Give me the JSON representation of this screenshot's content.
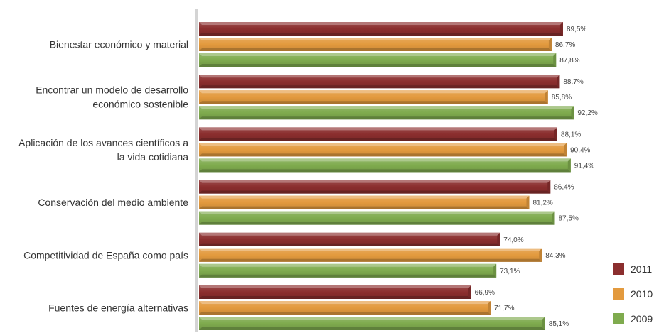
{
  "chart_data": {
    "type": "bar",
    "orientation": "horizontal",
    "categories": [
      [
        "Bienestar económico y material"
      ],
      [
        "Encontrar un modelo de desarrollo",
        "económico sostenible"
      ],
      [
        "Aplicación de los avances científicos a",
        "la vida cotidiana"
      ],
      [
        "Conservación del medio ambiente"
      ],
      [
        "Competitividad de España como país"
      ],
      [
        "Fuentes de energía alternativas"
      ]
    ],
    "series": [
      {
        "name": "2011",
        "color": "#8b2e2e",
        "values": [
          89.5,
          88.7,
          88.1,
          86.4,
          74.0,
          66.9
        ],
        "labels": [
          "89,5%",
          "88,7%",
          "88,1%",
          "86,4%",
          "74,0%",
          "66,9%"
        ]
      },
      {
        "name": "2010",
        "color": "#e39a3e",
        "values": [
          86.7,
          85.8,
          90.4,
          81.2,
          84.3,
          71.7
        ],
        "labels": [
          "86,7%",
          "85,8%",
          "90,4%",
          "81,2%",
          "84,3%",
          "71,7%"
        ]
      },
      {
        "name": "2009",
        "color": "#7fab4e",
        "values": [
          87.8,
          92.2,
          91.4,
          87.5,
          73.1,
          85.1
        ],
        "labels": [
          "87,8%",
          "92,2%",
          "91,4%",
          "87,5%",
          "73,1%",
          "85,1%"
        ]
      }
    ],
    "legend_placement": "bottom-right",
    "grid": false
  }
}
